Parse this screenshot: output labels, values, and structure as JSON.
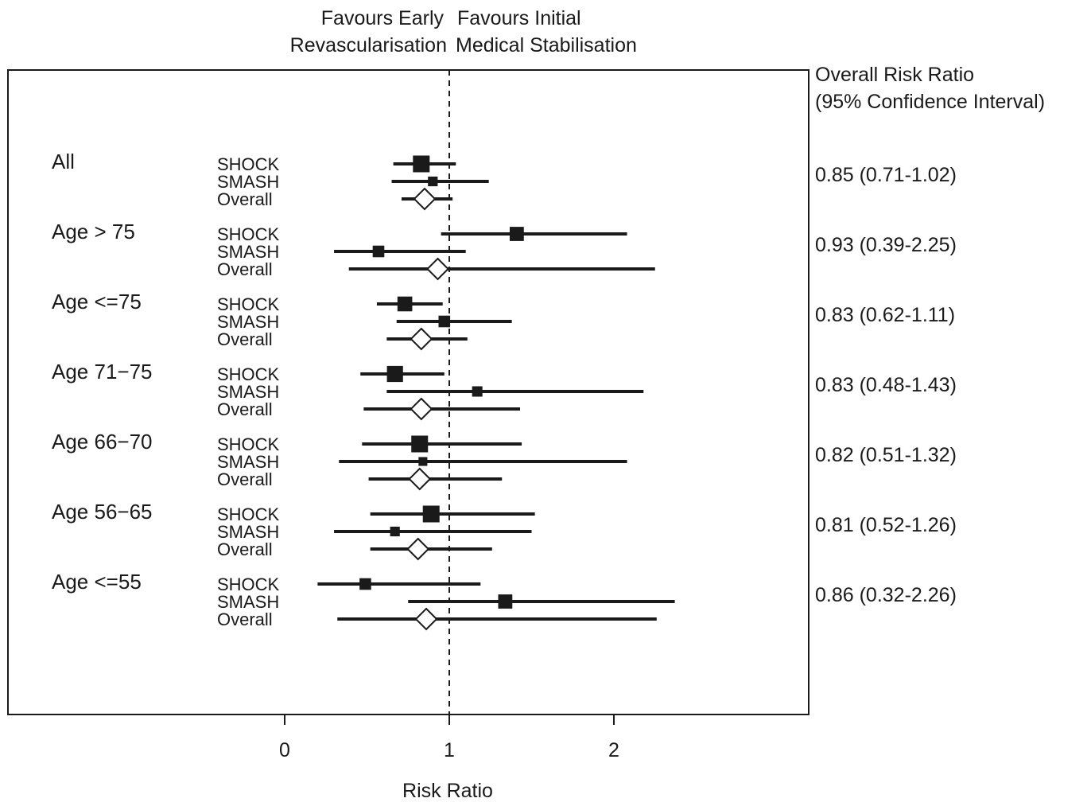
{
  "chart_data": {
    "type": "forest",
    "header_left": [
      "Favours Early",
      "Revascularisation"
    ],
    "header_right": [
      "Favours Initial",
      "Medical Stabilisation"
    ],
    "right_header": [
      "Overall Risk Ratio",
      "(95% Confidence Interval)"
    ],
    "xlabel": "Risk Ratio",
    "x_ticks": [
      "0",
      "1",
      "2"
    ],
    "xlim": [
      -1.7,
      3.2
    ],
    "reference_line": 1,
    "colors": {
      "ink": "#1a1a1a",
      "background": "#ffffff"
    },
    "groups": [
      {
        "label": "All",
        "overall_text": "0.85 (0.71-1.02)",
        "rows": [
          {
            "study": "SHOCK",
            "type": "square",
            "est": 0.83,
            "lo": 0.66,
            "hi": 1.04,
            "weight": 1.0
          },
          {
            "study": "SMASH",
            "type": "square",
            "est": 0.9,
            "lo": 0.65,
            "hi": 1.24,
            "weight": 0.45
          },
          {
            "study": "Overall",
            "type": "diamond",
            "est": 0.85,
            "lo": 0.71,
            "hi": 1.02
          }
        ]
      },
      {
        "label": "Age  > 75",
        "overall_text": "0.93 (0.39-2.25)",
        "rows": [
          {
            "study": "SHOCK",
            "type": "square",
            "est": 1.41,
            "lo": 0.95,
            "hi": 2.08,
            "weight": 0.8
          },
          {
            "study": "SMASH",
            "type": "square",
            "est": 0.57,
            "lo": 0.3,
            "hi": 1.1,
            "weight": 0.6
          },
          {
            "study": "Overall",
            "type": "diamond",
            "est": 0.93,
            "lo": 0.39,
            "hi": 2.25
          }
        ]
      },
      {
        "label": "Age  <=75",
        "overall_text": "0.83 (0.62-1.11)",
        "rows": [
          {
            "study": "SHOCK",
            "type": "square",
            "est": 0.73,
            "lo": 0.56,
            "hi": 0.96,
            "weight": 0.85
          },
          {
            "study": "SMASH",
            "type": "square",
            "est": 0.97,
            "lo": 0.68,
            "hi": 1.38,
            "weight": 0.6
          },
          {
            "study": "Overall",
            "type": "diamond",
            "est": 0.83,
            "lo": 0.62,
            "hi": 1.11
          }
        ]
      },
      {
        "label": "Age 71−75",
        "overall_text": "0.83 (0.48-1.43)",
        "rows": [
          {
            "study": "SHOCK",
            "type": "square",
            "est": 0.67,
            "lo": 0.46,
            "hi": 0.97,
            "weight": 0.95
          },
          {
            "study": "SMASH",
            "type": "square",
            "est": 1.17,
            "lo": 0.62,
            "hi": 2.18,
            "weight": 0.5
          },
          {
            "study": "Overall",
            "type": "diamond",
            "est": 0.83,
            "lo": 0.48,
            "hi": 1.43
          }
        ]
      },
      {
        "label": "Age 66−70",
        "overall_text": "0.82 (0.51-1.32)",
        "rows": [
          {
            "study": "SHOCK",
            "type": "square",
            "est": 0.82,
            "lo": 0.47,
            "hi": 1.44,
            "weight": 1.0
          },
          {
            "study": "SMASH",
            "type": "square",
            "est": 0.84,
            "lo": 0.33,
            "hi": 2.08,
            "weight": 0.38
          },
          {
            "study": "Overall",
            "type": "diamond",
            "est": 0.82,
            "lo": 0.51,
            "hi": 1.32
          }
        ]
      },
      {
        "label": "Age 56−65",
        "overall_text": "0.81 (0.52-1.26)",
        "rows": [
          {
            "study": "SHOCK",
            "type": "square",
            "est": 0.89,
            "lo": 0.52,
            "hi": 1.52,
            "weight": 1.0
          },
          {
            "study": "SMASH",
            "type": "square",
            "est": 0.67,
            "lo": 0.3,
            "hi": 1.5,
            "weight": 0.45
          },
          {
            "study": "Overall",
            "type": "diamond",
            "est": 0.81,
            "lo": 0.52,
            "hi": 1.26
          }
        ]
      },
      {
        "label": "Age  <=55",
        "overall_text": "0.86 (0.32-2.26)",
        "rows": [
          {
            "study": "SHOCK",
            "type": "square",
            "est": 0.49,
            "lo": 0.2,
            "hi": 1.19,
            "weight": 0.6
          },
          {
            "study": "SMASH",
            "type": "square",
            "est": 1.34,
            "lo": 0.75,
            "hi": 2.37,
            "weight": 0.8
          },
          {
            "study": "Overall",
            "type": "diamond",
            "est": 0.86,
            "lo": 0.32,
            "hi": 2.26
          }
        ]
      }
    ]
  }
}
